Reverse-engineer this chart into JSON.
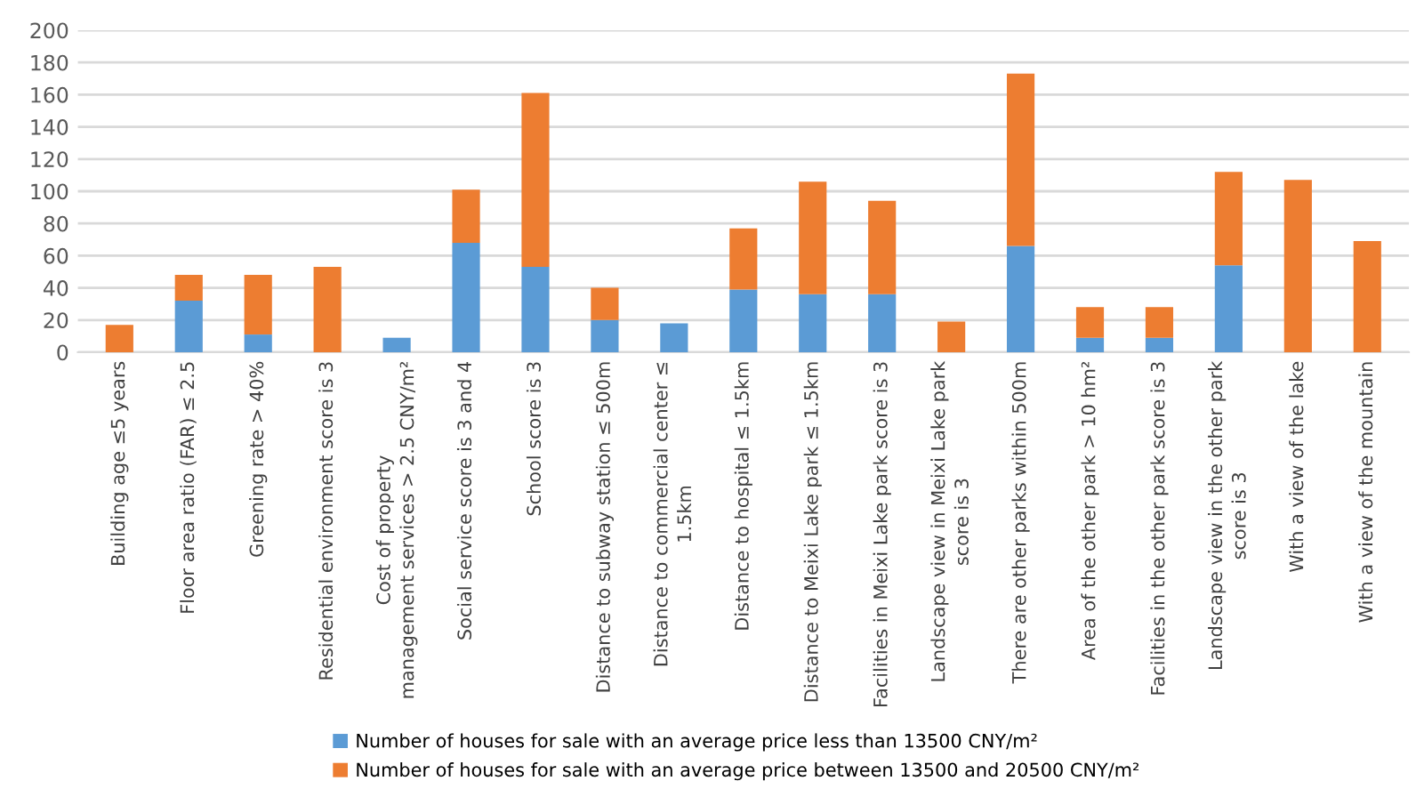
{
  "chart_data": {
    "type": "bar",
    "stacked": true,
    "categories": [
      "Building age ≤5 years",
      "Floor area ratio (FAR) ≤ 2.5",
      "Greening rate > 40%",
      "Residential environment score is 3",
      "Cost of property\nmanagement services > 2.5 CNY/m²",
      "Social service score is 3 and 4",
      "School score is 3",
      "Distance to subway station ≤ 500m",
      "Distance to commercial center ≤\n1.5km",
      "Distance to hospital ≤ 1.5km",
      "Distance to Meixi Lake park ≤ 1.5km",
      "Facilities in Meixi Lake park score is 3",
      "Landscape view in Meixi Lake park\nscore is 3",
      "There are other parks within 500m",
      "Area of the other park > 10 hm²",
      "Facilities in the other park score is 3",
      "Landscape view in the other park\nscore is 3",
      "With a view of the lake",
      "With a view of the mountain"
    ],
    "series": [
      {
        "name": "Number of houses for sale with an average price less than 13500 CNY/m²",
        "color": "#5b9bd5",
        "values": [
          0,
          32,
          11,
          0,
          9,
          68,
          53,
          20,
          18,
          39,
          36,
          36,
          0,
          66,
          9,
          9,
          54,
          0,
          0
        ]
      },
      {
        "name": "Number of houses for sale with an average price between 13500 and 20500 CNY/m²",
        "color": "#ed7d31",
        "values": [
          17,
          16,
          37,
          53,
          0,
          33,
          108,
          20,
          0,
          38,
          70,
          58,
          19,
          107,
          19,
          19,
          58,
          107,
          69
        ]
      }
    ],
    "ylim": [
      0,
      200
    ],
    "yticks": [
      0,
      20,
      40,
      60,
      80,
      100,
      120,
      140,
      160,
      180,
      200
    ],
    "grid": "y",
    "legend": "bottom"
  }
}
